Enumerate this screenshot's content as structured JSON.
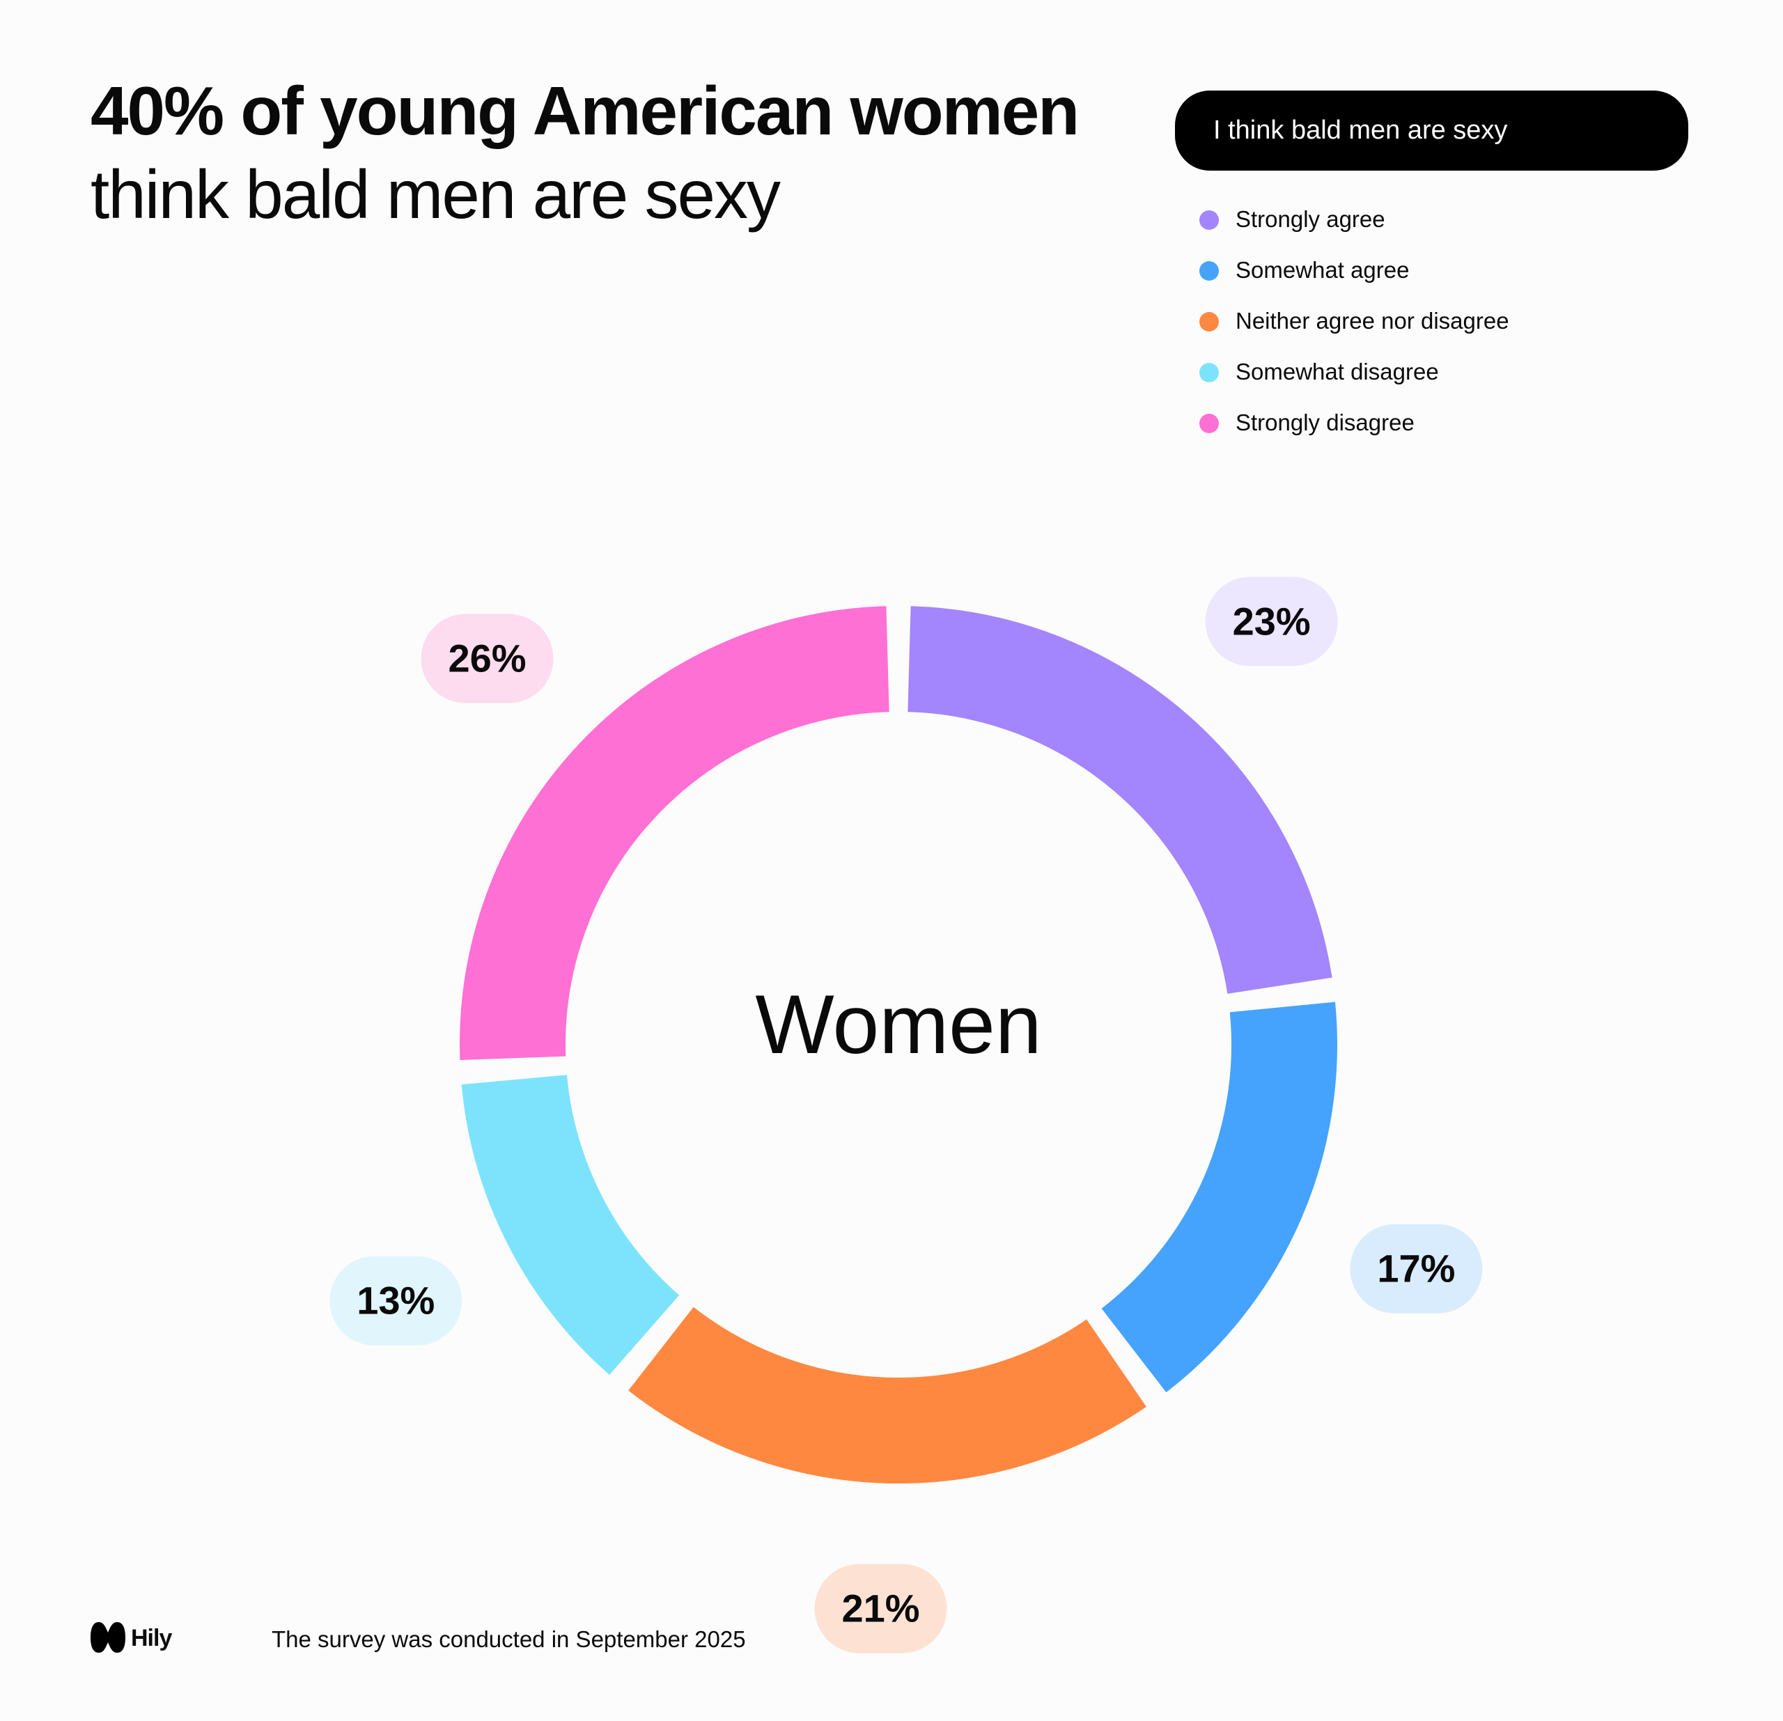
{
  "header": {
    "title_bold": "40% of young American women",
    "title_regular": "think bald men are sexy"
  },
  "question": "I think bald men are sexy",
  "legend": [
    {
      "label": "Strongly agree",
      "color": "#a385fd"
    },
    {
      "label": "Somewhat agree",
      "color": "#45a3fd"
    },
    {
      "label": "Neither agree nor disagree",
      "color": "#ff8840"
    },
    {
      "label": "Somewhat disagree",
      "color": "#7de3fd"
    },
    {
      "label": "Strongly disagree",
      "color": "#ff70d4"
    }
  ],
  "chart_data": {
    "type": "pie",
    "donut": true,
    "center_label": "Women",
    "categories": [
      "Strongly agree",
      "Somewhat agree",
      "Neither agree nor disagree",
      "Somewhat disagree",
      "Strongly disagree"
    ],
    "values": [
      23,
      17,
      21,
      13,
      26
    ],
    "value_labels": [
      "23%",
      "17%",
      "21%",
      "13%",
      "26%"
    ],
    "colors": [
      "#a385fd",
      "#45a3fd",
      "#ff8840",
      "#7de3fd",
      "#ff70d4"
    ],
    "label_bg_colors": [
      "#ece6fe",
      "#d9ecfe",
      "#fde2d4",
      "#e1f5fd",
      "#fddcef"
    ],
    "legend_position": "top-right"
  },
  "footer": {
    "brand": "Hily",
    "note": "The survey was conducted in September 2025"
  }
}
